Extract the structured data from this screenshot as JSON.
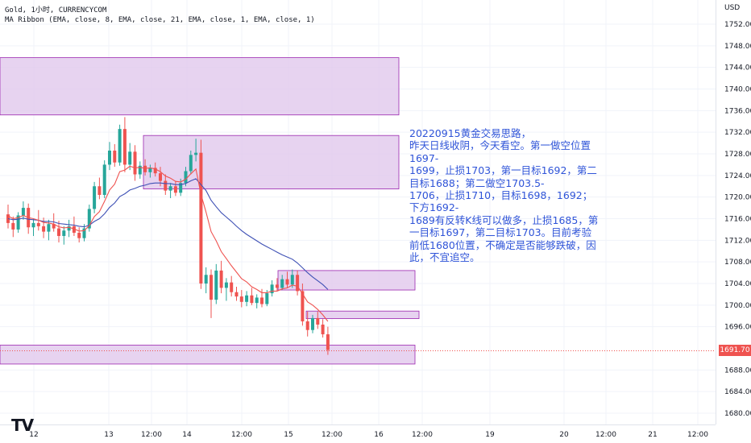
{
  "header": {
    "symbol_line": "Gold, 1小时, CURRENCYCOM",
    "indicator_line": "MA Ribbon (EMA, close, 8, EMA, close, 21, EMA, close, 1, EMA, close, 1)"
  },
  "price_axis": {
    "currency": "USD",
    "ticks": [
      "1752.00",
      "1748.00",
      "1744.00",
      "1740.00",
      "1736.00",
      "1732.00",
      "1728.00",
      "1724.00",
      "1720.00",
      "1716.00",
      "1712.00",
      "1708.00",
      "1704.00",
      "1700.00",
      "1696.00",
      "1688.00",
      "1684.00",
      "1680.00"
    ],
    "last_price": "1691.70"
  },
  "time_axis": {
    "ticks": [
      "12",
      "13",
      "12:00",
      "14",
      "12:00",
      "15",
      "12:00",
      "16",
      "12:00",
      "19",
      "20",
      "12:00",
      "21",
      "12:00"
    ]
  },
  "annotation": {
    "text": "20220915黄金交易思路，\n昨天日线收阴，今天看空。第一做空位置1697-\n1699，止损1703，第一目标1692，第二目标1688；第二做空1703.5-\n1706，止损1710，目标1698，1692；下方1692-\n1689有反转K线可以做多，止损1685，第一目标1697，第二目标1703。目前考验前低1680位置，不确定是否能够跌破，因此，不宜追空。"
  },
  "colors": {
    "up": "#26a69a",
    "down": "#ef5350",
    "zone_fill": "#e1c8ec",
    "zone_border": "#9c27b0",
    "ema_fast": "#ef5350",
    "ema_slow": "#3f51b5",
    "note": "#2f54d8"
  },
  "logo": "TV",
  "chart_data": {
    "type": "candlestick",
    "timeframe": "1小时",
    "y_unit": "USD",
    "ylim": [
      1677,
      1756
    ],
    "zones": [
      {
        "from": 1735.2,
        "to": 1745.8
      },
      {
        "from": 1721.5,
        "to": 1731.4
      },
      {
        "from": 1702.8,
        "to": 1706.4
      },
      {
        "from": 1697.5,
        "to": 1698.9
      },
      {
        "from": 1689.1,
        "to": 1692.6
      }
    ],
    "candles": [
      {
        "o": 1716.8,
        "h": 1718.6,
        "l": 1714.2,
        "c": 1715.2
      },
      {
        "o": 1715.2,
        "h": 1716.4,
        "l": 1712.6,
        "c": 1714.0
      },
      {
        "o": 1714.0,
        "h": 1717.2,
        "l": 1713.4,
        "c": 1716.6
      },
      {
        "o": 1716.6,
        "h": 1719.2,
        "l": 1715.8,
        "c": 1718.0
      },
      {
        "o": 1718.0,
        "h": 1718.8,
        "l": 1713.2,
        "c": 1714.4
      },
      {
        "o": 1714.4,
        "h": 1716.0,
        "l": 1712.8,
        "c": 1715.2
      },
      {
        "o": 1715.2,
        "h": 1717.6,
        "l": 1713.8,
        "c": 1714.6
      },
      {
        "o": 1714.6,
        "h": 1716.2,
        "l": 1712.4,
        "c": 1713.6
      },
      {
        "o": 1713.6,
        "h": 1715.8,
        "l": 1712.0,
        "c": 1715.0
      },
      {
        "o": 1715.0,
        "h": 1717.0,
        "l": 1713.6,
        "c": 1714.2
      },
      {
        "o": 1714.2,
        "h": 1715.6,
        "l": 1711.6,
        "c": 1712.8
      },
      {
        "o": 1712.8,
        "h": 1714.6,
        "l": 1711.2,
        "c": 1713.8
      },
      {
        "o": 1713.8,
        "h": 1715.8,
        "l": 1712.6,
        "c": 1714.6
      },
      {
        "o": 1714.6,
        "h": 1716.4,
        "l": 1712.8,
        "c": 1713.4
      },
      {
        "o": 1713.4,
        "h": 1714.4,
        "l": 1711.6,
        "c": 1712.4
      },
      {
        "o": 1712.4,
        "h": 1715.0,
        "l": 1711.8,
        "c": 1714.2
      },
      {
        "o": 1714.2,
        "h": 1718.6,
        "l": 1713.6,
        "c": 1717.8
      },
      {
        "o": 1717.8,
        "h": 1722.8,
        "l": 1717.0,
        "c": 1722.0
      },
      {
        "o": 1722.0,
        "h": 1723.6,
        "l": 1719.6,
        "c": 1720.4
      },
      {
        "o": 1720.4,
        "h": 1726.8,
        "l": 1719.8,
        "c": 1726.0
      },
      {
        "o": 1726.0,
        "h": 1730.2,
        "l": 1725.0,
        "c": 1728.6
      },
      {
        "o": 1728.6,
        "h": 1729.8,
        "l": 1725.6,
        "c": 1726.4
      },
      {
        "o": 1726.4,
        "h": 1733.4,
        "l": 1725.8,
        "c": 1732.6
      },
      {
        "o": 1732.6,
        "h": 1734.8,
        "l": 1724.6,
        "c": 1726.0
      },
      {
        "o": 1726.0,
        "h": 1730.0,
        "l": 1725.0,
        "c": 1728.4
      },
      {
        "o": 1728.4,
        "h": 1729.6,
        "l": 1723.0,
        "c": 1724.2
      },
      {
        "o": 1724.2,
        "h": 1726.6,
        "l": 1723.4,
        "c": 1725.8
      },
      {
        "o": 1725.8,
        "h": 1727.0,
        "l": 1724.0,
        "c": 1724.6
      },
      {
        "o": 1724.6,
        "h": 1726.0,
        "l": 1723.6,
        "c": 1725.4
      },
      {
        "o": 1725.4,
        "h": 1726.4,
        "l": 1723.8,
        "c": 1724.4
      },
      {
        "o": 1724.4,
        "h": 1725.6,
        "l": 1722.0,
        "c": 1723.0
      },
      {
        "o": 1723.0,
        "h": 1724.2,
        "l": 1720.4,
        "c": 1721.2
      },
      {
        "o": 1721.2,
        "h": 1722.6,
        "l": 1719.8,
        "c": 1722.0
      },
      {
        "o": 1722.0,
        "h": 1723.0,
        "l": 1720.2,
        "c": 1720.8
      },
      {
        "o": 1720.8,
        "h": 1723.4,
        "l": 1720.2,
        "c": 1722.6
      },
      {
        "o": 1722.6,
        "h": 1725.6,
        "l": 1722.0,
        "c": 1724.8
      },
      {
        "o": 1724.8,
        "h": 1728.6,
        "l": 1724.2,
        "c": 1727.8
      },
      {
        "o": 1727.8,
        "h": 1730.8,
        "l": 1726.6,
        "c": 1728.2
      },
      {
        "o": 1728.2,
        "h": 1730.6,
        "l": 1703.0,
        "c": 1704.0
      },
      {
        "o": 1704.0,
        "h": 1707.0,
        "l": 1702.2,
        "c": 1705.6
      },
      {
        "o": 1705.6,
        "h": 1706.6,
        "l": 1697.6,
        "c": 1701.0
      },
      {
        "o": 1701.0,
        "h": 1707.6,
        "l": 1700.2,
        "c": 1706.4
      },
      {
        "o": 1706.4,
        "h": 1708.2,
        "l": 1702.2,
        "c": 1703.2
      },
      {
        "o": 1703.2,
        "h": 1705.0,
        "l": 1700.8,
        "c": 1704.2
      },
      {
        "o": 1704.2,
        "h": 1705.4,
        "l": 1701.6,
        "c": 1702.4
      },
      {
        "o": 1702.4,
        "h": 1703.4,
        "l": 1700.8,
        "c": 1701.6
      },
      {
        "o": 1701.6,
        "h": 1702.8,
        "l": 1699.6,
        "c": 1700.6
      },
      {
        "o": 1700.6,
        "h": 1702.6,
        "l": 1699.8,
        "c": 1701.8
      },
      {
        "o": 1701.8,
        "h": 1703.2,
        "l": 1700.0,
        "c": 1700.4
      },
      {
        "o": 1700.4,
        "h": 1702.0,
        "l": 1699.4,
        "c": 1701.4
      },
      {
        "o": 1701.4,
        "h": 1703.0,
        "l": 1699.6,
        "c": 1700.2
      },
      {
        "o": 1700.2,
        "h": 1702.8,
        "l": 1699.8,
        "c": 1702.2
      },
      {
        "o": 1702.2,
        "h": 1704.6,
        "l": 1701.6,
        "c": 1703.8
      },
      {
        "o": 1703.8,
        "h": 1705.0,
        "l": 1702.6,
        "c": 1703.2
      },
      {
        "o": 1703.2,
        "h": 1705.6,
        "l": 1702.8,
        "c": 1704.8
      },
      {
        "o": 1704.8,
        "h": 1706.2,
        "l": 1703.2,
        "c": 1703.8
      },
      {
        "o": 1703.8,
        "h": 1706.6,
        "l": 1703.2,
        "c": 1705.6
      },
      {
        "o": 1705.6,
        "h": 1706.4,
        "l": 1701.8,
        "c": 1702.6
      },
      {
        "o": 1702.6,
        "h": 1704.0,
        "l": 1696.2,
        "c": 1697.0
      },
      {
        "o": 1697.0,
        "h": 1698.8,
        "l": 1694.2,
        "c": 1695.4
      },
      {
        "o": 1695.4,
        "h": 1698.2,
        "l": 1694.8,
        "c": 1697.6
      },
      {
        "o": 1697.6,
        "h": 1698.8,
        "l": 1695.6,
        "c": 1696.4
      },
      {
        "o": 1696.4,
        "h": 1697.4,
        "l": 1694.0,
        "c": 1694.6
      },
      {
        "o": 1694.6,
        "h": 1696.0,
        "l": 1690.8,
        "c": 1691.7
      }
    ],
    "ema_fast": [
      1716.5,
      1716.0,
      1716.2,
      1716.6,
      1716.2,
      1716.0,
      1715.7,
      1715.3,
      1715.2,
      1715.0,
      1714.5,
      1714.3,
      1714.4,
      1714.1,
      1713.7,
      1713.8,
      1714.7,
      1716.4,
      1717.3,
      1719.2,
      1721.3,
      1722.4,
      1724.7,
      1725.0,
      1725.7,
      1725.4,
      1725.5,
      1725.3,
      1725.4,
      1725.2,
      1724.7,
      1723.9,
      1723.5,
      1722.9,
      1722.8,
      1723.3,
      1724.3,
      1725.2,
      1720.5,
      1717.2,
      1713.6,
      1711.9,
      1709.9,
      1708.6,
      1707.3,
      1706.1,
      1704.9,
      1704.3,
      1703.4,
      1702.9,
      1702.3,
      1702.3,
      1702.6,
      1702.6,
      1703.0,
      1703.2,
      1703.7,
      1703.5,
      1702.1,
      1700.6,
      1700.0,
      1699.2,
      1698.2,
      1697.0
    ],
    "ema_slow": [
      1716.0,
      1715.8,
      1715.9,
      1716.1,
      1715.9,
      1715.8,
      1715.7,
      1715.5,
      1715.5,
      1715.4,
      1715.1,
      1715.0,
      1714.9,
      1714.8,
      1714.6,
      1714.5,
      1714.8,
      1715.5,
      1716.0,
      1716.9,
      1718.1,
      1718.9,
      1720.1,
      1720.6,
      1721.3,
      1721.6,
      1722.0,
      1722.2,
      1722.5,
      1722.6,
      1722.6,
      1722.5,
      1722.5,
      1722.3,
      1722.3,
      1722.5,
      1723.0,
      1723.4,
      1722.3,
      1721.2,
      1719.4,
      1718.2,
      1717.1,
      1716.3,
      1715.5,
      1714.6,
      1713.8,
      1713.1,
      1712.5,
      1711.9,
      1711.3,
      1710.8,
      1710.3,
      1709.8,
      1709.3,
      1708.9,
      1708.5,
      1707.8,
      1706.9,
      1706.0,
      1705.2,
      1704.5,
      1703.8,
      1702.9
    ]
  }
}
